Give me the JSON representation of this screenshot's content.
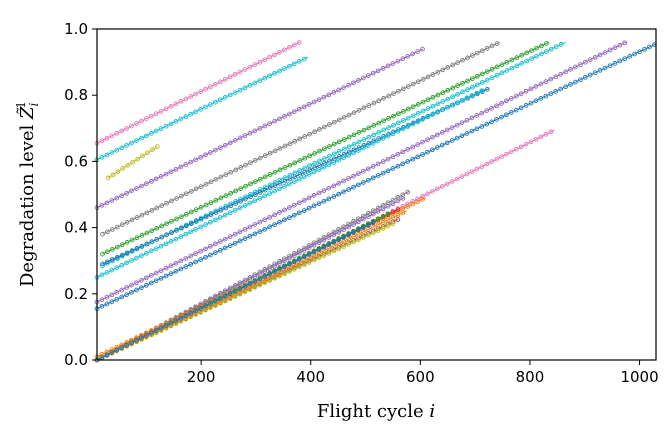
{
  "chart_data": {
    "type": "line",
    "title": "",
    "xlabel": "Flight cycle ",
    "xlabel_var": "i",
    "ylabel": "Degradation level ",
    "ylabel_var": "Z̃",
    "ylabel_sub": "i",
    "ylabel_sup": "1",
    "xlim": [
      10,
      1030
    ],
    "ylim": [
      0.0,
      1.0
    ],
    "xticks": [
      {
        "value": 200,
        "label": "200"
      },
      {
        "value": 400,
        "label": "400"
      },
      {
        "value": 600,
        "label": "600"
      },
      {
        "value": 800,
        "label": "800"
      },
      {
        "value": 1000,
        "label": "1000"
      }
    ],
    "yticks": [
      {
        "value": 0.0,
        "label": "0.0"
      },
      {
        "value": 0.2,
        "label": "0.2"
      },
      {
        "value": 0.4,
        "label": "0.4"
      },
      {
        "value": 0.6,
        "label": "0.6"
      },
      {
        "value": 0.8,
        "label": "0.8"
      },
      {
        "value": 1.0,
        "label": "1.0"
      }
    ],
    "grid": false,
    "marker": "open-circle",
    "series": [
      {
        "color": "#e377c2",
        "x": [
          10,
          380
        ],
        "y": [
          0.655,
          0.96
        ]
      },
      {
        "color": "#17becf",
        "x": [
          10,
          395
        ],
        "y": [
          0.605,
          0.915
        ]
      },
      {
        "color": "#bcbd22",
        "x": [
          30,
          120
        ],
        "y": [
          0.55,
          0.645
        ]
      },
      {
        "color": "#9467bd",
        "x": [
          10,
          605
        ],
        "y": [
          0.46,
          0.94
        ]
      },
      {
        "color": "#7f7f7f",
        "x": [
          20,
          745
        ],
        "y": [
          0.38,
          0.96
        ]
      },
      {
        "color": "#2ca02c",
        "x": [
          20,
          835
        ],
        "y": [
          0.32,
          0.96
        ]
      },
      {
        "color": "#17becf",
        "x": [
          20,
          865
        ],
        "y": [
          0.285,
          0.96
        ]
      },
      {
        "color": "#1f77b4",
        "x": [
          20,
          725
        ],
        "y": [
          0.29,
          0.82
        ]
      },
      {
        "color": "#17becf",
        "x": [
          10,
          720
        ],
        "y": [
          0.25,
          0.82
        ]
      },
      {
        "color": "#9467bd",
        "x": [
          10,
          975
        ],
        "y": [
          0.175,
          0.96
        ]
      },
      {
        "color": "#1f77b4",
        "x": [
          10,
          1030
        ],
        "y": [
          0.155,
          0.955
        ]
      },
      {
        "color": "#e377c2",
        "x": [
          10,
          845
        ],
        "y": [
          0.0,
          0.695
        ]
      },
      {
        "color": "#7f7f7f",
        "x": [
          10,
          580
        ],
        "y": [
          0.0,
          0.51
        ]
      },
      {
        "color": "#9467bd",
        "x": [
          10,
          570
        ],
        "y": [
          0.0,
          0.49
        ]
      },
      {
        "color": "#ff7f0e",
        "x": [
          10,
          610
        ],
        "y": [
          0.01,
          0.49
        ]
      },
      {
        "color": "#d62728",
        "x": [
          10,
          560
        ],
        "y": [
          0.0,
          0.455
        ]
      },
      {
        "color": "#2ca02c",
        "x": [
          10,
          545
        ],
        "y": [
          0.0,
          0.445
        ]
      },
      {
        "color": "#8c564b",
        "x": [
          10,
          560
        ],
        "y": [
          0.0,
          0.425
        ]
      },
      {
        "color": "#bcbd22",
        "x": [
          10,
          555
        ],
        "y": [
          0.0,
          0.415
        ]
      },
      {
        "color": "#ff7f0e",
        "x": [
          10,
          575
        ],
        "y": [
          0.0,
          0.45
        ]
      },
      {
        "color": "#1f77b4",
        "x": [
          10,
          520
        ],
        "y": [
          0.0,
          0.42
        ]
      }
    ]
  }
}
